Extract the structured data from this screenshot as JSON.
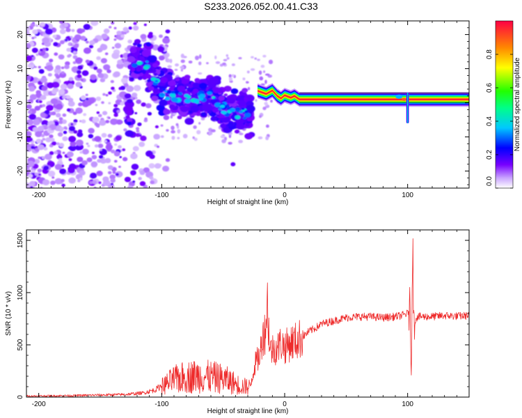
{
  "page": {
    "title": "S233.2026.052.00.41.C33"
  },
  "colors": {
    "line": "#ee2a2a",
    "frame": "#000000",
    "background": "#ffffff"
  },
  "chart_data": [
    {
      "type": "heatmap",
      "name": "spectrogram",
      "xlabel": "Height of straight line (km)",
      "ylabel": "Frequency (Hz)",
      "xlim": [
        -210,
        150
      ],
      "ylim": [
        -25,
        24
      ],
      "xticks": [
        -200,
        -100,
        0,
        100
      ],
      "yticks": [
        -20,
        -10,
        0,
        10,
        20
      ],
      "colorbar": {
        "label": "Normalized spectral amplitude",
        "range": [
          0.0,
          1.0
        ],
        "ticks": [
          0.0,
          0.2,
          0.4,
          0.6,
          0.8
        ],
        "tick_labels": [
          "0.0",
          "0.2",
          "0.4",
          "0.6",
          "0.8"
        ],
        "colormap": [
          "#ffffff",
          "#7700ff",
          "#0000ff",
          "#00ffff",
          "#00ff00",
          "#ffff00",
          "#ff8800",
          "#ff0044"
        ]
      },
      "features": [
        {
          "desc": "scattered low amplitude noise",
          "x_range": [
            -210,
            -95
          ],
          "y_range": [
            -25,
            24
          ],
          "amplitude": 0.15
        },
        {
          "desc": "descending trace",
          "points": [
            [
              -125,
              12
            ],
            [
              -110,
              11
            ],
            [
              -100,
              3
            ],
            [
              -80,
              1
            ],
            [
              -60,
              2
            ],
            [
              -45,
              -3
            ],
            [
              -30,
              -3
            ]
          ],
          "amplitude": 0.35
        },
        {
          "desc": "stable band",
          "x_range": [
            -20,
            150
          ],
          "y_center": 1,
          "amplitude": 1.0
        },
        {
          "desc": "spike near 100 km",
          "x": 100,
          "y_range": [
            -6,
            3
          ],
          "amplitude": 0.4
        }
      ]
    },
    {
      "type": "line",
      "name": "snr",
      "xlabel": "Height of straight line (km)",
      "ylabel": "SNR (10 * v/v)",
      "xlim": [
        -210,
        150
      ],
      "ylim": [
        0,
        1600
      ],
      "xticks": [
        -200,
        -100,
        0,
        100
      ],
      "yticks": [
        0,
        500,
        1000,
        1500
      ],
      "series": [
        {
          "name": "SNR",
          "color": "#ee2a2a",
          "x": [
            -210,
            -190,
            -170,
            -150,
            -130,
            -115,
            -105,
            -98,
            -90,
            -80,
            -70,
            -60,
            -50,
            -42,
            -35,
            -28,
            -24,
            -20,
            -18,
            -16,
            -14,
            -12,
            -10,
            -6,
            -3,
            0,
            5,
            10,
            15,
            20,
            25,
            30,
            40,
            50,
            60,
            70,
            80,
            90,
            95,
            100,
            102,
            103,
            104,
            105,
            107,
            110,
            120,
            130,
            140,
            150
          ],
          "values": [
            10,
            12,
            15,
            20,
            25,
            40,
            70,
            130,
            190,
            220,
            230,
            220,
            200,
            160,
            120,
            110,
            320,
            400,
            600,
            620,
            900,
            450,
            460,
            470,
            520,
            480,
            520,
            540,
            580,
            630,
            660,
            700,
            730,
            760,
            770,
            770,
            760,
            770,
            780,
            800,
            850,
            200,
            1600,
            700,
            760,
            770,
            770,
            780,
            775,
            780
          ]
        }
      ]
    }
  ]
}
